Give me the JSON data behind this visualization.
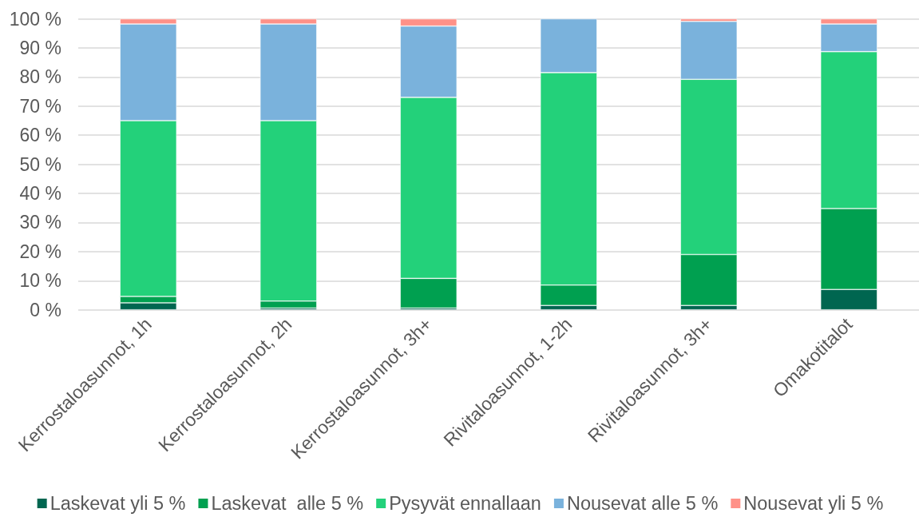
{
  "chart_data": {
    "type": "bar",
    "stacked": true,
    "categories": [
      "Kerrostaloasunnot, 1h",
      "Kerrostaloasunnot, 2h",
      "Kerrostaloasunnot, 3h+",
      "Rivitaloasunnot, 1-2h",
      "Rivitaloasunnot, 3h+",
      "Omakotitalot"
    ],
    "series": [
      {
        "name": "Laskevat yli 5 %",
        "color": "#006650",
        "values": [
          2.4,
          0.6,
          0.6,
          1.5,
          1.5,
          7.0
        ]
      },
      {
        "name": "Laskevat  alle 5 %",
        "color": "#00a050",
        "values": [
          2.2,
          2.4,
          10.2,
          7.0,
          17.5,
          27.8
        ]
      },
      {
        "name": "Pysyvät ennallaan",
        "color": "#23d17a",
        "values": [
          60.4,
          62.0,
          62.2,
          73.0,
          60.2,
          53.9
        ]
      },
      {
        "name": "Nousevat alle 5 %",
        "color": "#7ab2dc",
        "values": [
          33.2,
          33.2,
          24.5,
          18.5,
          19.9,
          9.5
        ]
      },
      {
        "name": "Nousevat yli 5 %",
        "color": "#ff9188",
        "values": [
          1.8,
          1.8,
          2.5,
          0,
          0.9,
          1.8
        ]
      }
    ],
    "ylim": [
      0,
      100
    ],
    "yticks": [
      {
        "value": 0,
        "label": "0 %"
      },
      {
        "value": 10,
        "label": "10 %"
      },
      {
        "value": 20,
        "label": "20 %"
      },
      {
        "value": 30,
        "label": "30 %"
      },
      {
        "value": 40,
        "label": "40 %"
      },
      {
        "value": 50,
        "label": "50 %"
      },
      {
        "value": 60,
        "label": "60 %"
      },
      {
        "value": 70,
        "label": "70 %"
      },
      {
        "value": 80,
        "label": "80 %"
      },
      {
        "value": 90,
        "label": "90 %"
      },
      {
        "value": 100,
        "label": "100 %"
      }
    ],
    "grid": "y",
    "legend": "bottom"
  }
}
